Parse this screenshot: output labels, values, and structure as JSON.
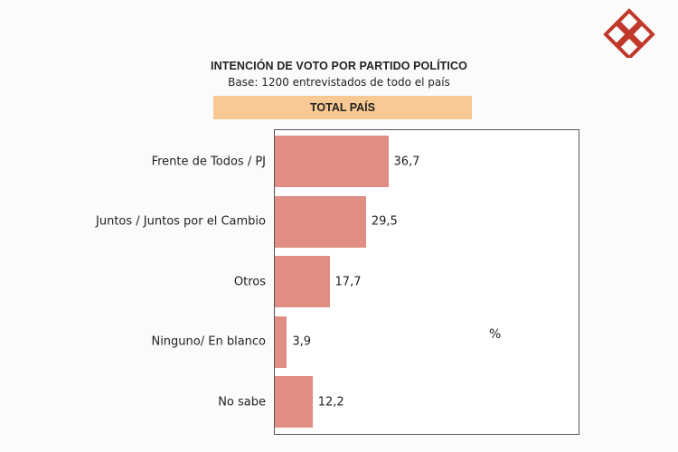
{
  "logo": {
    "icon": "interlocking-diamonds-logo-icon",
    "color": "#c0392b"
  },
  "banner_color": "#f8c993",
  "chart_data": {
    "type": "bar",
    "orientation": "horizontal",
    "title": "INTENCIÓN DE VOTO POR PARTIDO POLÍTICO",
    "subtitle": "Base: 1200 entrevistados de todo el país",
    "banner": "TOTAL PAÍS",
    "unit": "%",
    "categories": [
      "Frente de Todos / PJ",
      "Juntos / Juntos por el Cambio",
      "Otros",
      "Ninguno/ En blanco",
      "No sabe"
    ],
    "values": [
      36.7,
      29.5,
      17.7,
      3.9,
      12.2
    ],
    "value_labels": [
      "36,7",
      "29,5",
      "17,7",
      "3,9",
      "12,2"
    ],
    "xlim": [
      0,
      100
    ],
    "bar_color": "#e08e84",
    "grid": false,
    "legend": "none"
  }
}
